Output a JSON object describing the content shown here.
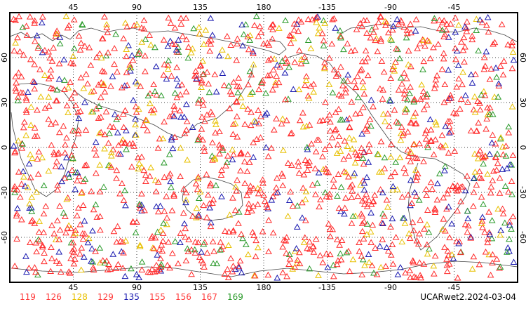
{
  "map": {
    "projection": "cylindrical equidistant",
    "lon_range": [
      0,
      360
    ],
    "lat_range": [
      -90,
      90
    ],
    "grid": "dotted",
    "top_lon_ticks": [
      "45",
      "90",
      "135",
      "180",
      "-135",
      "-90",
      "-45"
    ],
    "bottom_lon_ticks": [
      "45",
      "90",
      "135",
      "180",
      "-135",
      "-90",
      "-45"
    ],
    "lat_ticks": [
      "60",
      "30",
      "0",
      "-30",
      "-60"
    ],
    "marker": "open triangle",
    "colors": {
      "red": "#ff2a2a",
      "yellow": "#e8c000",
      "blue": "#1a1ab0",
      "green": "#2a9a2a",
      "coast": "#444444"
    }
  },
  "legend": [
    {
      "label": "119",
      "color": "#ff3a3a"
    },
    {
      "label": "126",
      "color": "#ff3a3a"
    },
    {
      "label": "128",
      "color": "#e8c000"
    },
    {
      "label": "129",
      "color": "#ff3a3a"
    },
    {
      "label": "135",
      "color": "#1a1ab0"
    },
    {
      "label": "155",
      "color": "#ff3a3a"
    },
    {
      "label": "156",
      "color": "#ff3a3a"
    },
    {
      "label": "167",
      "color": "#ff3a3a"
    },
    {
      "label": "169",
      "color": "#2a9a2a"
    }
  ],
  "stamp": "UCARwet2.2024-03-04"
}
